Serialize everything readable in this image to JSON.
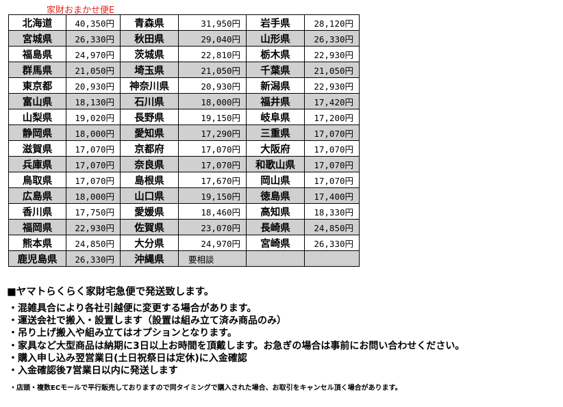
{
  "title": "家財おまかせ便E",
  "table": {
    "rows": [
      [
        [
          "北海道",
          "40,350円"
        ],
        [
          "青森県",
          "31,950円"
        ],
        [
          "岩手県",
          "28,120円"
        ]
      ],
      [
        [
          "宮城県",
          "26,330円"
        ],
        [
          "秋田県",
          "29,040円"
        ],
        [
          "山形県",
          "26,330円"
        ]
      ],
      [
        [
          "福島県",
          "24,970円"
        ],
        [
          "茨城県",
          "22,810円"
        ],
        [
          "栃木県",
          "22,930円"
        ]
      ],
      [
        [
          "群馬県",
          "21,050円"
        ],
        [
          "埼玉県",
          "21,050円"
        ],
        [
          "千葉県",
          "21,050円"
        ]
      ],
      [
        [
          "東京都",
          "20,930円"
        ],
        [
          "神奈川県",
          "20,930円"
        ],
        [
          "新潟県",
          "22,930円"
        ]
      ],
      [
        [
          "富山県",
          "18,130円"
        ],
        [
          "石川県",
          "18,000円"
        ],
        [
          "福井県",
          "17,420円"
        ]
      ],
      [
        [
          "山梨県",
          "19,020円"
        ],
        [
          "長野県",
          "19,150円"
        ],
        [
          "岐阜県",
          "17,200円"
        ]
      ],
      [
        [
          "静岡県",
          "18,000円"
        ],
        [
          "愛知県",
          "17,290円"
        ],
        [
          "三重県",
          "17,070円"
        ]
      ],
      [
        [
          "滋賀県",
          "17,070円"
        ],
        [
          "京都府",
          "17,070円"
        ],
        [
          "大阪府",
          "17,070円"
        ]
      ],
      [
        [
          "兵庫県",
          "17,070円"
        ],
        [
          "奈良県",
          "17,070円"
        ],
        [
          "和歌山県",
          "17,070円"
        ]
      ],
      [
        [
          "鳥取県",
          "17,070円"
        ],
        [
          "島根県",
          "17,670円"
        ],
        [
          "岡山県",
          "17,070円"
        ]
      ],
      [
        [
          "広島県",
          "18,000円"
        ],
        [
          "山口県",
          "19,150円"
        ],
        [
          "徳島県",
          "17,400円"
        ]
      ],
      [
        [
          "香川県",
          "17,750円"
        ],
        [
          "愛媛県",
          "18,460円"
        ],
        [
          "高知県",
          "18,330円"
        ]
      ],
      [
        [
          "福岡県",
          "22,930円"
        ],
        [
          "佐賀県",
          "23,070円"
        ],
        [
          "長崎県",
          "24,850円"
        ]
      ],
      [
        [
          "熊本県",
          "24,850円"
        ],
        [
          "大分県",
          "24,970円"
        ],
        [
          "宮崎県",
          "26,330円"
        ]
      ],
      [
        [
          "鹿児島県",
          "26,330円"
        ],
        [
          "沖縄県",
          "要相談"
        ],
        [
          "",
          ""
        ]
      ]
    ]
  },
  "heading": "■ヤマトらくらく家財宅急便で発送致します。",
  "notes": [
    "・混雑具合により各社引越便に変更する場合があります。",
    "・運送会社で搬入・設置します（設置は組み立て済み商品のみ）",
    "・吊り上げ搬入や組み立てはオプションとなります。",
    "・家具など大型商品は納期に3日以上お時間を頂戴します。お急ぎの場合は事前にお問い合わせください。",
    "・購入申し込み翌営業日(土日祝祭日は定休)に入金確認",
    "・入金確認後7営業日以内に発送します"
  ],
  "footnote": "・店頭・複数ECモールで平行販売しておりますので同タイミングで購入された場合、お取引をキャンセル頂く場合があります。",
  "colors": {
    "title": "#e8231f",
    "stripe": "#d0d0d0"
  }
}
